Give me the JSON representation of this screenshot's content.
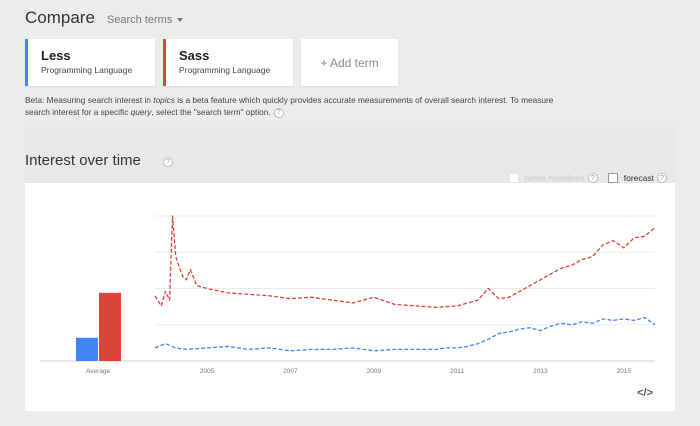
{
  "header": {
    "title": "Compare",
    "search_terms_label": "Search terms"
  },
  "terms": [
    {
      "name": "Less",
      "type": "Programming Language",
      "color": "#4285f4"
    },
    {
      "name": "Sass",
      "type": "Programming Language",
      "color": "#db4437"
    }
  ],
  "add_term_label": "+ Add term",
  "beta": {
    "part1": "Beta: Measuring search interest in ",
    "topics": "topics",
    "part2": " is a beta feature which quickly provides accurate measurements of overall search interest. To measure search interest for a specific ",
    "query": "query",
    "part3": ", select the \"search term\" option."
  },
  "section": {
    "title": "Interest over time"
  },
  "options": {
    "news_headlines": "News headlines",
    "forecast": "forecast"
  },
  "help_glyph": "?",
  "embed_label": "</>",
  "chart_data": {
    "type": "line",
    "x_ticks": [
      "2005",
      "2007",
      "2009",
      "2011",
      "2013",
      "2015"
    ],
    "average_label": "Average",
    "average": {
      "Less": 16,
      "Sass": 47
    },
    "series": [
      {
        "name": "Less",
        "color": "#4285f4",
        "x": [
          2003.75,
          2004.0,
          2004.25,
          2004.5,
          2005.0,
          2005.5,
          2006.0,
          2006.5,
          2007.0,
          2007.5,
          2008.0,
          2008.5,
          2009.0,
          2009.5,
          2010.0,
          2010.5,
          2010.75,
          2011.0,
          2011.25,
          2011.5,
          2011.75,
          2012.0,
          2012.25,
          2012.5,
          2012.75,
          2013.0,
          2013.25,
          2013.5,
          2013.75,
          2014.0,
          2014.25,
          2014.5,
          2014.75,
          2015.0,
          2015.25,
          2015.5,
          2015.75
        ],
        "y": [
          9,
          12,
          9,
          8,
          9,
          10,
          8,
          9,
          7,
          8,
          8,
          9,
          7,
          8,
          8,
          8,
          9,
          9,
          10,
          12,
          15,
          19,
          20,
          22,
          23,
          21,
          24,
          26,
          25,
          27,
          26,
          29,
          28,
          29,
          28,
          30,
          25
        ]
      },
      {
        "name": "Sass",
        "color": "#db4437",
        "x": [
          2003.75,
          2003.9,
          2004.0,
          2004.1,
          2004.17,
          2004.25,
          2004.33,
          2004.42,
          2004.5,
          2004.6,
          2004.75,
          2005.0,
          2005.5,
          2006.0,
          2006.5,
          2007.0,
          2007.5,
          2008.0,
          2008.5,
          2009.0,
          2009.5,
          2010.0,
          2010.5,
          2011.0,
          2011.25,
          2011.5,
          2011.75,
          2012.0,
          2012.25,
          2012.5,
          2012.75,
          2013.0,
          2013.25,
          2013.5,
          2013.75,
          2014.0,
          2014.25,
          2014.5,
          2014.75,
          2015.0,
          2015.25,
          2015.5,
          2015.75
        ],
        "y": [
          45,
          38,
          48,
          42,
          100,
          72,
          65,
          58,
          56,
          63,
          52,
          50,
          47,
          46,
          45,
          43,
          44,
          42,
          40,
          44,
          39,
          38,
          37,
          38,
          40,
          42,
          50,
          43,
          44,
          48,
          52,
          56,
          60,
          64,
          66,
          70,
          72,
          80,
          83,
          78,
          85,
          86,
          92
        ]
      }
    ],
    "xlim": [
      2003.75,
      2015.75
    ],
    "ylim": [
      0,
      100
    ],
    "grid": true,
    "line_style": "dashed",
    "title": "",
    "xlabel": "",
    "ylabel": ""
  }
}
